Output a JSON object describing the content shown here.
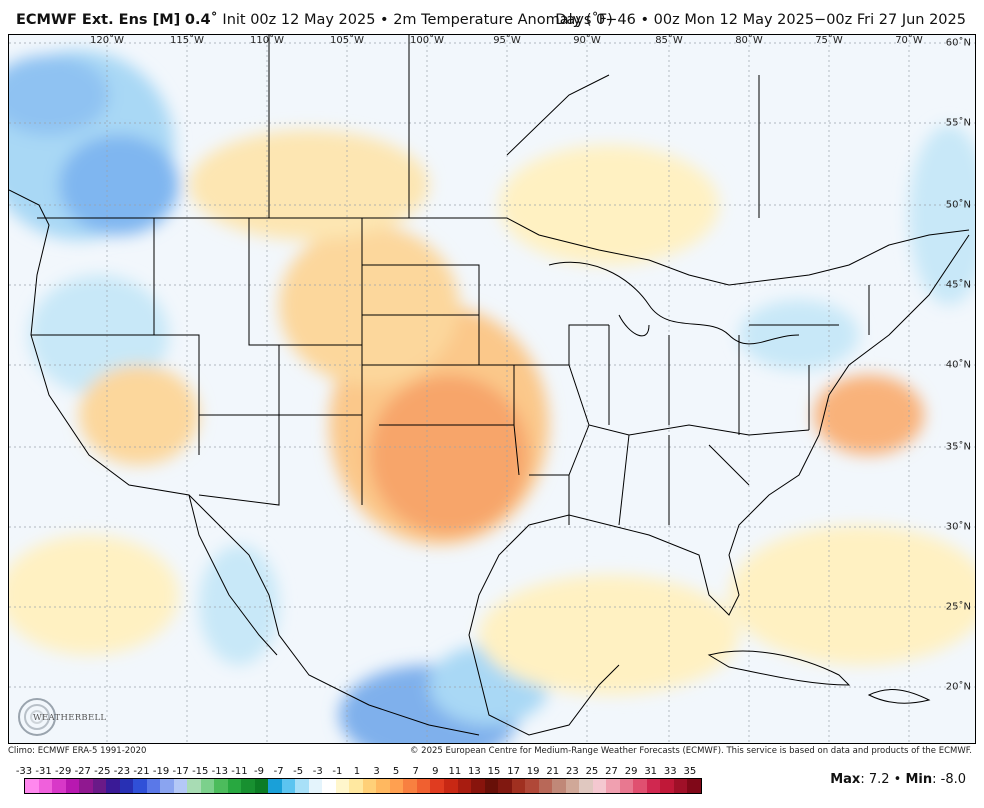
{
  "header": {
    "model": "ECMWF Ext. Ens [M]",
    "resolution": "0.4˚",
    "init_text": "Init 00z 12 May 2025 • 2m Temperature Anomaly (˚F)",
    "range_text": "Days 0−46 • 00z Mon 12 May 2025−00z Fri 27 Jun 2025"
  },
  "map": {
    "lon_labels": [
      "120˚W",
      "115˚W",
      "110˚W",
      "105˚W",
      "100˚W",
      "95˚W",
      "90˚W",
      "85˚W",
      "80˚W",
      "75˚W",
      "70˚W"
    ],
    "lat_labels": [
      "60˚N",
      "55˚N",
      "50˚N",
      "45˚N",
      "40˚N",
      "35˚N",
      "30˚N",
      "25˚N",
      "20˚N"
    ],
    "logo_text": "WEATHERBELL"
  },
  "footer": {
    "climo": "Climo: ECMWF ERA-5 1991-2020",
    "copyright": "© 2025 European Centre for Medium-Range Weather Forecasts (ECMWF). This service is based on data and products of the ECMWF."
  },
  "scale": {
    "ticks": [
      "-33",
      "-31",
      "-29",
      "-27",
      "-25",
      "-23",
      "-21",
      "-19",
      "-17",
      "-15",
      "-13",
      "-11",
      "-9",
      "-7",
      "-5",
      "-3",
      "-1",
      "1",
      "3",
      "5",
      "7",
      "9",
      "11",
      "13",
      "15",
      "17",
      "19",
      "21",
      "23",
      "25",
      "27",
      "29",
      "31",
      "33",
      "35"
    ],
    "colors": [
      "#ff88ee",
      "#f060dc",
      "#d838c8",
      "#b818b0",
      "#901890",
      "#6a1a88",
      "#3a1a96",
      "#2830b4",
      "#3050d8",
      "#5a78e8",
      "#8aa4f0",
      "#b4c8f6",
      "#a8dcb4",
      "#7cd08c",
      "#4cbc5c",
      "#28a840",
      "#189030",
      "#0c7c24",
      "#1aa0d8",
      "#5cc4f0",
      "#a8e0f8",
      "#e4f4fc",
      "#ffffff",
      "#fff6cc",
      "#ffe8a0",
      "#ffd078",
      "#ffb860",
      "#ffa050",
      "#f88040",
      "#f06030",
      "#e03c20",
      "#c82814",
      "#a81c10",
      "#88140c",
      "#681008",
      "#801810",
      "#a03020",
      "#b04838",
      "#b86858",
      "#c08878",
      "#d0a898",
      "#e0c8c0",
      "#f4c8d0",
      "#f0a0b0",
      "#e87890",
      "#e05070",
      "#d02850",
      "#c01838",
      "#a01028",
      "#800818"
    ]
  },
  "stats": {
    "max_label": "Max",
    "max_value": "7.2",
    "min_label": "Min",
    "min_value": "-8.0"
  }
}
